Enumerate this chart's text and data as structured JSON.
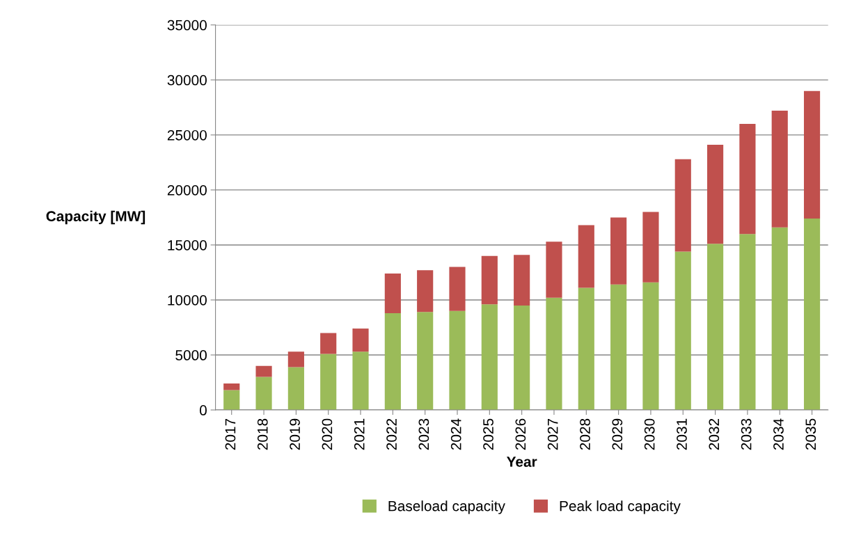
{
  "chart_data": {
    "type": "bar",
    "stacked": true,
    "xlabel": "Year",
    "ylabel": "Capacity [MW]",
    "categories": [
      "2017",
      "2018",
      "2019",
      "2020",
      "2021",
      "2022",
      "2023",
      "2024",
      "2025",
      "2026",
      "2027",
      "2028",
      "2029",
      "2030",
      "2031",
      "2032",
      "2033",
      "2034",
      "2035"
    ],
    "series": [
      {
        "name": "Baseload capacity",
        "color": "#9bbb59",
        "values": [
          1800,
          3000,
          3900,
          5100,
          5300,
          8800,
          8900,
          9000,
          9600,
          9500,
          10200,
          11100,
          11400,
          11600,
          14400,
          15100,
          16000,
          16600,
          17400
        ]
      },
      {
        "name": "Peak load capacity",
        "color": "#c0504d",
        "values": [
          600,
          1000,
          1400,
          1900,
          2100,
          3600,
          3800,
          4000,
          4400,
          4600,
          5100,
          5700,
          6100,
          6400,
          8400,
          9000,
          10000,
          10600,
          11600
        ]
      }
    ],
    "ylim": [
      0,
      35000
    ],
    "yticks": [
      0,
      5000,
      10000,
      15000,
      20000,
      25000,
      30000,
      35000
    ],
    "grid": "y",
    "legend": "bottom"
  }
}
